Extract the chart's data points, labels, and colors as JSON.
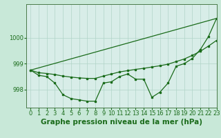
{
  "background_color": "#c8e8d8",
  "plot_bg_color": "#d8ede8",
  "grid_color": "#b0d4c8",
  "line_color": "#1a6b1a",
  "xlabel": "Graphe pression niveau de la mer (hPa)",
  "xlim": [
    -0.5,
    23
  ],
  "ylim": [
    997.3,
    1001.3
  ],
  "yticks": [
    998,
    999,
    1000
  ],
  "xticks": [
    0,
    1,
    2,
    3,
    4,
    5,
    6,
    7,
    8,
    9,
    10,
    11,
    12,
    13,
    14,
    15,
    16,
    17,
    18,
    19,
    20,
    21,
    22,
    23
  ],
  "line1_x": [
    0,
    1,
    2,
    3,
    4,
    5,
    6,
    7,
    8,
    9,
    10,
    11,
    12,
    13,
    14,
    15,
    16,
    17,
    18,
    19,
    20,
    21,
    22,
    23
  ],
  "line1_y": [
    998.75,
    998.55,
    998.5,
    998.25,
    997.8,
    997.65,
    997.6,
    997.55,
    997.55,
    998.25,
    998.3,
    998.5,
    998.6,
    998.4,
    998.4,
    997.7,
    997.9,
    998.25,
    998.9,
    999.0,
    999.2,
    999.55,
    1000.05,
    1000.75
  ],
  "line2_x": [
    0,
    1,
    2,
    3,
    4,
    5,
    6,
    7,
    8,
    9,
    10,
    11,
    12,
    13,
    14,
    15,
    16,
    17,
    18,
    19,
    20,
    21,
    22,
    23
  ],
  "line2_y": [
    998.75,
    998.65,
    998.62,
    998.58,
    998.52,
    998.48,
    998.45,
    998.43,
    998.43,
    998.52,
    998.6,
    998.68,
    998.73,
    998.78,
    998.82,
    998.87,
    998.92,
    998.98,
    999.08,
    999.18,
    999.32,
    999.48,
    999.68,
    999.9
  ],
  "line3_x": [
    0,
    23
  ],
  "line3_y": [
    998.75,
    1000.75
  ],
  "marker": "s",
  "markersize": 2.0,
  "linewidth": 0.9,
  "xlabel_fontsize": 7.5,
  "tick_fontsize": 6.0
}
